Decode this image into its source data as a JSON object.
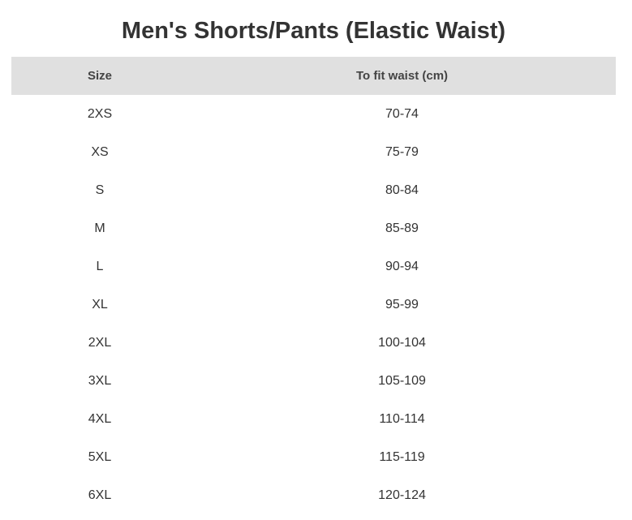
{
  "title": "Men's Shorts/Pants (Elastic Waist)",
  "headers": [
    "Size",
    "To fit waist (cm)"
  ],
  "rows": [
    [
      "2XS",
      "70-74"
    ],
    [
      "XS",
      "75-79"
    ],
    [
      "S",
      "80-84"
    ],
    [
      "M",
      "85-89"
    ],
    [
      "L",
      "90-94"
    ],
    [
      "XL",
      "95-99"
    ],
    [
      "2XL",
      "100-104"
    ],
    [
      "3XL",
      "105-109"
    ],
    [
      "4XL",
      "110-114"
    ],
    [
      "5XL",
      "115-119"
    ],
    [
      "6XL",
      "120-124"
    ]
  ]
}
